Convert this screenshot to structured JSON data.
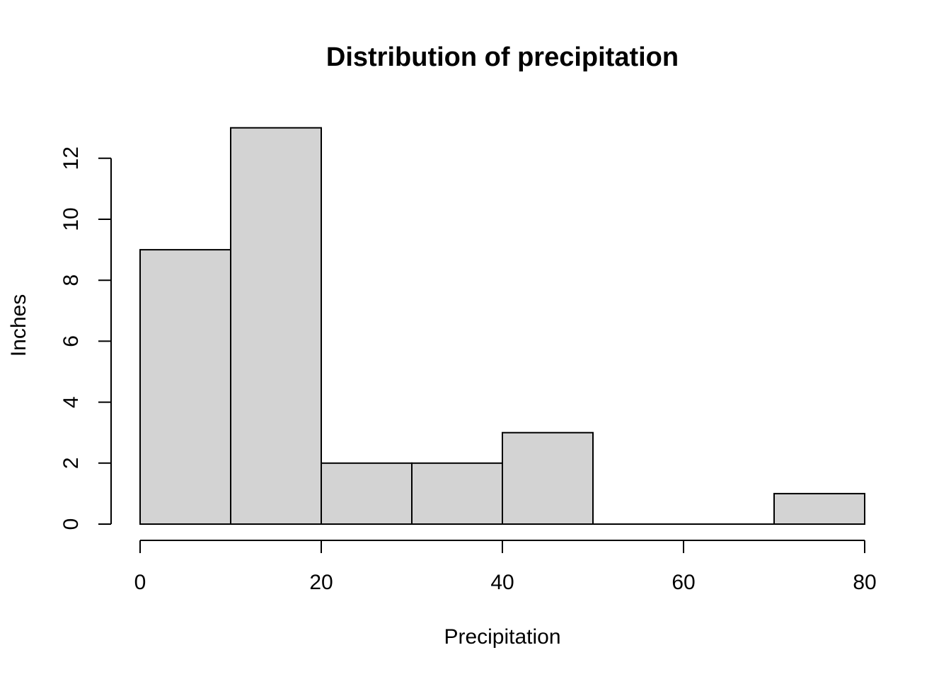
{
  "chart_data": {
    "type": "bar",
    "title": "Distribution of precipitation",
    "xlabel": "Precipitation",
    "ylabel": "Inches",
    "bins": [
      {
        "x0": 0,
        "x1": 10,
        "count": 9
      },
      {
        "x0": 10,
        "x1": 20,
        "count": 13
      },
      {
        "x0": 20,
        "x1": 30,
        "count": 2
      },
      {
        "x0": 30,
        "x1": 40,
        "count": 2
      },
      {
        "x0": 40,
        "x1": 50,
        "count": 3
      },
      {
        "x0": 50,
        "x1": 60,
        "count": 0
      },
      {
        "x0": 60,
        "x1": 70,
        "count": 0
      },
      {
        "x0": 70,
        "x1": 80,
        "count": 1
      }
    ],
    "xticks": [
      0,
      20,
      40,
      60,
      80
    ],
    "yticks": [
      0,
      2,
      4,
      6,
      8,
      10,
      12
    ],
    "xlim": [
      0,
      80
    ],
    "ylim": [
      0,
      13
    ],
    "grid": false,
    "bar_color": "#d3d3d3",
    "edge_color": "#000000"
  }
}
